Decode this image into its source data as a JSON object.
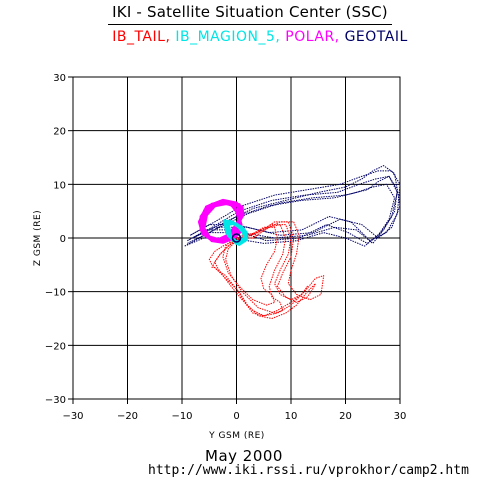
{
  "header": {
    "title": "IKI - Satellite Situation Center (SSC)"
  },
  "legend": [
    {
      "label": "IB_TAIL",
      "color": "#ff0000"
    },
    {
      "label": "IB_MAGION_5",
      "color": "#00e5e5"
    },
    {
      "label": "POLAR",
      "color": "#ff00ff"
    },
    {
      "label": "GEOTAIL",
      "color": "#000066"
    }
  ],
  "footer": {
    "date": "May    2000",
    "url": "http://www.iki.rssi.ru/vprokhor/camp2.htm"
  },
  "chart_data": {
    "type": "scatter",
    "title": "",
    "xlabel": "Y GSM (RE)",
    "ylabel": "Z GSM (RE)",
    "xlim": [
      -30,
      30
    ],
    "ylim": [
      -30,
      30
    ],
    "xticks": [
      -30,
      -20,
      -10,
      0,
      10,
      20,
      30
    ],
    "yticks": [
      -30,
      -20,
      -10,
      0,
      10,
      20,
      30
    ],
    "grid": true,
    "series": [
      {
        "name": "GEOTAIL",
        "color": "#000066",
        "style": "dotted-orbits",
        "orbits": [
          {
            "x": [
              -9,
              -4,
              2,
              8,
              14,
              20,
              24,
              26,
              28,
              29.5,
              29,
              27,
              25,
              22,
              18,
              13,
              7,
              1,
              -5,
              -9
            ],
            "y": [
              -1,
              1.5,
              4.5,
              6.5,
              7.5,
              8,
              9,
              10.5,
              11.5,
              9,
              5,
              1.5,
              -1,
              1.5,
              2,
              0.5,
              0,
              1,
              1,
              -1
            ]
          },
          {
            "x": [
              -8,
              -3,
              3,
              9,
              15,
              20,
              23,
              25,
              27,
              29,
              30,
              28.5,
              26,
              23,
              19,
              14,
              8,
              2,
              -4,
              -8
            ],
            "y": [
              0,
              2.5,
              5.5,
              7,
              8.5,
              9.5,
              11,
              12.5,
              13.5,
              12,
              6,
              2,
              0,
              2.5,
              3.5,
              1,
              0.5,
              2,
              2,
              0
            ]
          },
          {
            "x": [
              -9.5,
              -5,
              0,
              6,
              12,
              18,
              22,
              25,
              27.5,
              29,
              28,
              26,
              23.5,
              20,
              16,
              11,
              5,
              -1,
              -6,
              -9.5
            ],
            "y": [
              -1.5,
              1,
              4,
              6,
              7,
              7.5,
              8.5,
              9.5,
              10,
              7.5,
              3.5,
              0.5,
              -1.5,
              0,
              1,
              -0.5,
              -1,
              0,
              0,
              -1.5
            ]
          },
          {
            "x": [
              -8.5,
              -4,
              1,
              7,
              13,
              19,
              23,
              26,
              28.5,
              30,
              29.5,
              27.5,
              24.5,
              21,
              17,
              12,
              6,
              0,
              -5,
              -8.5
            ],
            "y": [
              0.5,
              3,
              6,
              8,
              9,
              10,
              11.5,
              12.5,
              12.5,
              10,
              4.5,
              1,
              -0.5,
              3,
              4,
              1.5,
              1,
              2.5,
              2.5,
              0.5
            ]
          },
          {
            "x": [
              -9,
              -4.5,
              0.5,
              6.5,
              12.5,
              18.5,
              22.5,
              25.5,
              28,
              29.5,
              28.5,
              26.5,
              24,
              20.5,
              16.5,
              11.5,
              5.5,
              -0.5,
              -5.5,
              -9
            ],
            "y": [
              -0.5,
              2,
              5,
              7,
              8,
              8.5,
              10,
              11,
              11.5,
              8.5,
              4,
              1,
              -1,
              1,
              2.5,
              0,
              -0.5,
              1.5,
              1.5,
              -0.5
            ]
          }
        ]
      },
      {
        "name": "IB_TAIL",
        "color": "#ff0000",
        "style": "dotted-orbits",
        "orbits": [
          {
            "x": [
              0.5,
              3,
              6,
              8,
              9,
              8.5,
              7,
              6,
              6.5,
              8,
              8.5,
              7,
              4,
              1,
              -1,
              -2,
              -1.5,
              0,
              0.5
            ],
            "y": [
              0,
              0,
              2,
              2.5,
              0,
              -3,
              -6,
              -9,
              -11,
              -12,
              -13.5,
              -14,
              -13,
              -10,
              -7,
              -4,
              -2,
              -0.5,
              0
            ]
          },
          {
            "x": [
              1,
              4,
              7,
              9.5,
              10.5,
              10,
              8.5,
              7.5,
              9,
              11,
              13,
              14,
              14.5,
              13,
              11,
              9,
              6.5,
              4,
              2,
              0.5,
              -1.5,
              -3,
              -4,
              -4.5,
              -4,
              -3,
              -1.5,
              0,
              1
            ],
            "y": [
              0.5,
              1,
              3,
              3,
              0,
              -3.5,
              -6.5,
              -9,
              -11,
              -12,
              -11,
              -9.5,
              -8.5,
              -10,
              -12.5,
              -14,
              -15,
              -14.5,
              -12.5,
              -10,
              -8,
              -6.5,
              -5.5,
              -5.5,
              -4.5,
              -3,
              -1.5,
              0,
              0.5
            ]
          },
          {
            "x": [
              1.5,
              5,
              8,
              10.5,
              11.5,
              11,
              10,
              9.5,
              11,
              13.5,
              15.5,
              16,
              14.5,
              12.5,
              10,
              7.5,
              5,
              3,
              1.5,
              0,
              -2,
              -3.5,
              -4.5,
              -5,
              -4,
              -2.5,
              -0.5,
              1.5
            ],
            "y": [
              0,
              1.5,
              3,
              3,
              0.5,
              -3,
              -6,
              -8.5,
              -10.5,
              -11.5,
              -10.5,
              -7,
              -7.5,
              -10,
              -12,
              -13.5,
              -14.5,
              -14,
              -12,
              -9.5,
              -7,
              -6,
              -5,
              -4,
              -2.5,
              -1.5,
              -0.5,
              0
            ]
          },
          {
            "x": [
              0,
              2.5,
              5,
              7,
              7.5,
              7,
              5.5,
              4.5,
              5,
              6.5,
              7,
              5.5,
              3,
              0.5,
              -1.5,
              -2.5,
              -2,
              -1,
              0
            ],
            "y": [
              0,
              0.5,
              2,
              2,
              0,
              -2.5,
              -5,
              -7.5,
              -9.5,
              -10.5,
              -12,
              -12.5,
              -11.5,
              -9,
              -6.5,
              -3.5,
              -1.5,
              -0.5,
              0
            ]
          },
          {
            "x": [
              1,
              3.5,
              6.5,
              9,
              10,
              9.5,
              8,
              7,
              8,
              10,
              12,
              13,
              12,
              10,
              7.5,
              5,
              3,
              1,
              -1,
              -2.5,
              -3.5,
              -4,
              -3,
              -1.5,
              0,
              1
            ],
            "y": [
              0,
              1,
              2.5,
              2.5,
              0,
              -3,
              -6,
              -8.5,
              -10.5,
              -11.5,
              -10.5,
              -9,
              -10.5,
              -12.5,
              -14,
              -14.5,
              -13.5,
              -11.5,
              -9,
              -7,
              -5.5,
              -4.5,
              -3,
              -1.5,
              -0.5,
              0
            ]
          }
        ]
      },
      {
        "name": "POLAR",
        "color": "#ff00ff",
        "style": "dense-orbits",
        "orbits": [
          {
            "x": [
              -0.5,
              -3,
              -5.5,
              -6.5,
              -6,
              -4.5,
              -2.5,
              -0.5,
              1,
              0.5,
              -0.5
            ],
            "y": [
              6,
              6.8,
              5.8,
              3.5,
              1.2,
              -0.5,
              -0.8,
              0,
              1.5,
              4,
              6
            ]
          },
          {
            "x": [
              0,
              -2.5,
              -5,
              -6.5,
              -6.5,
              -5,
              -3,
              -1,
              0.5,
              0.8,
              0
            ],
            "y": [
              6.5,
              7,
              6,
              4,
              1.5,
              0,
              -0.6,
              0.3,
              2,
              4.5,
              6.5
            ]
          },
          {
            "x": [
              0.5,
              -2,
              -4.5,
              -6,
              -6.3,
              -5.3,
              -3.5,
              -1.5,
              0,
              1,
              0.5
            ],
            "y": [
              6.2,
              6.8,
              6.3,
              4.5,
              2,
              0.3,
              -0.5,
              0.5,
              2.5,
              4.5,
              6.2
            ]
          },
          {
            "x": [
              1,
              -1.5,
              -4,
              -5.5,
              -6,
              -5,
              -3.3,
              -1.2,
              0.3,
              1.2,
              1
            ],
            "y": [
              5.8,
              6.5,
              6,
              4.3,
              1.8,
              0.2,
              -0.3,
              0.7,
              2.7,
              4.3,
              5.8
            ]
          },
          {
            "x": [
              -1,
              -3.5,
              -5.8,
              -6.8,
              -6.2,
              -4.5,
              -2.2,
              0,
              0.8,
              0,
              -1
            ],
            "y": [
              6.3,
              6.6,
              5.2,
              3,
              0.8,
              -0.4,
              -0.5,
              0.5,
              2.5,
              5,
              6.3
            ]
          }
        ]
      },
      {
        "name": "IB_MAGION_5",
        "color": "#00e5e5",
        "style": "dense-orbits",
        "orbits": [
          {
            "x": [
              -2,
              -1.5,
              0,
              1.5,
              1.5,
              1,
              0,
              -1,
              -2
            ],
            "y": [
              3,
              0.5,
              -1,
              -0.5,
              0.5,
              1.5,
              2.5,
              3,
              3
            ]
          },
          {
            "x": [
              -1.5,
              -1,
              0.5,
              1.8,
              1.8,
              1,
              -0.5,
              -1.5
            ],
            "y": [
              2.5,
              0,
              -1.2,
              -0.3,
              1,
              2,
              2.8,
              2.5
            ]
          },
          {
            "x": [
              -2.2,
              -1.8,
              -0.5,
              1,
              1.6,
              0.5,
              -1,
              -2.2
            ],
            "y": [
              3.2,
              1,
              -0.6,
              -0.8,
              0.5,
              2,
              3,
              3.2
            ]
          },
          {
            "x": [
              -1.8,
              -1.2,
              0.2,
              1.5,
              1.2,
              0,
              -1.8
            ],
            "y": [
              2.8,
              0.3,
              -0.9,
              0,
              1.5,
              2.6,
              2.8
            ]
          }
        ]
      }
    ],
    "markers": [
      {
        "name": "earth",
        "x": 0,
        "y": 0
      }
    ]
  }
}
